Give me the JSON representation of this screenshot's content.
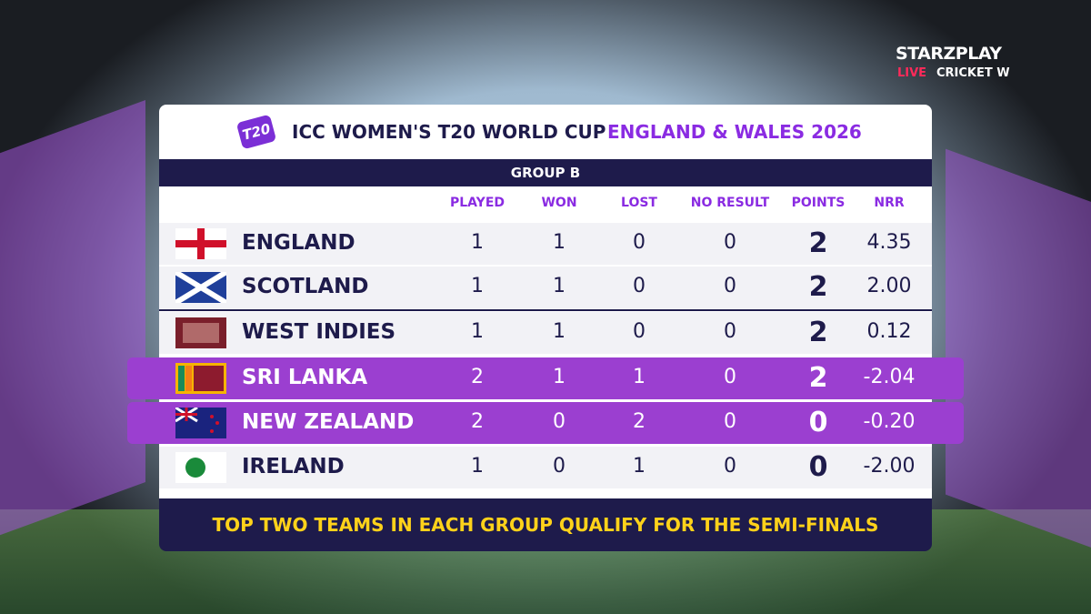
{
  "broadcaster": {
    "name": "STARZPLAY",
    "live": "LIVE",
    "channel": "CRICKET W"
  },
  "header": {
    "logo": "T20",
    "title": "ICC WOMEN'S T20 WORLD CUP",
    "subtitle": "ENGLAND & WALES 2026"
  },
  "table": {
    "group": "GROUP B",
    "columns": [
      "PLAYED",
      "WON",
      "LOST",
      "NO RESULT",
      "POINTS",
      "NRR"
    ],
    "rows": [
      [
        "ENGLAND",
        1,
        1,
        0,
        0,
        2,
        "4.35"
      ],
      [
        "SCOTLAND",
        1,
        1,
        0,
        0,
        2,
        "2.00"
      ],
      [
        "WEST INDIES",
        1,
        1,
        0,
        0,
        2,
        "0.12"
      ],
      [
        "SRI LANKA",
        2,
        1,
        1,
        0,
        2,
        "-2.04"
      ],
      [
        "NEW ZEALAND",
        2,
        0,
        2,
        0,
        0,
        "-0.20"
      ],
      [
        "IRELAND",
        1,
        0,
        1,
        0,
        0,
        "-2.00"
      ]
    ]
  },
  "footer": {
    "note": "TOP TWO TEAMS IN EACH GROUP QUALIFY FOR THE SEMI-FINALS"
  }
}
